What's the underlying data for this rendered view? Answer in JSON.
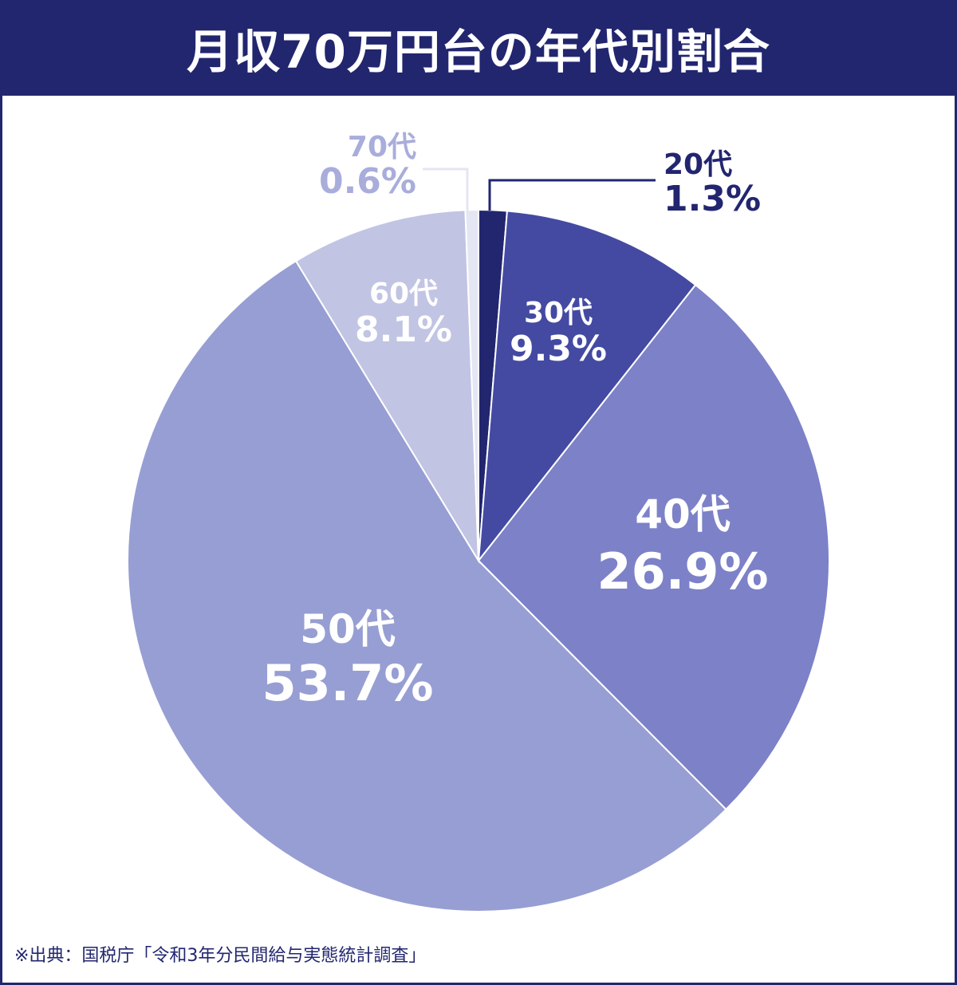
{
  "title": "月収70万円台の年代別割合",
  "source": "※出典：国税庁「令和3年分民間給与実態統計調査」",
  "colors": {
    "header": "#22266f",
    "label_dark": "#22266f",
    "label_light": "#ffffff",
    "label_faint": "#a9addb"
  },
  "chart_data": {
    "type": "pie",
    "title": "月収70万円台の年代別割合",
    "start_angle_deg": 0,
    "direction": "clockwise",
    "slices": [
      {
        "label": "20代",
        "pct_label": "1.3%",
        "value": 1.3,
        "color": "#22266f"
      },
      {
        "label": "30代",
        "pct_label": "9.3%",
        "value": 9.3,
        "color": "#444aa2"
      },
      {
        "label": "40代",
        "pct_label": "26.9%",
        "value": 26.9,
        "color": "#7c81c8"
      },
      {
        "label": "50代",
        "pct_label": "53.7%",
        "value": 53.7,
        "color": "#979ed3"
      },
      {
        "label": "60代",
        "pct_label": "8.1%",
        "value": 8.1,
        "color": "#c1c4e3"
      },
      {
        "label": "70代",
        "pct_label": "0.6%",
        "value": 0.6,
        "color": "#e5e6f3"
      }
    ]
  }
}
